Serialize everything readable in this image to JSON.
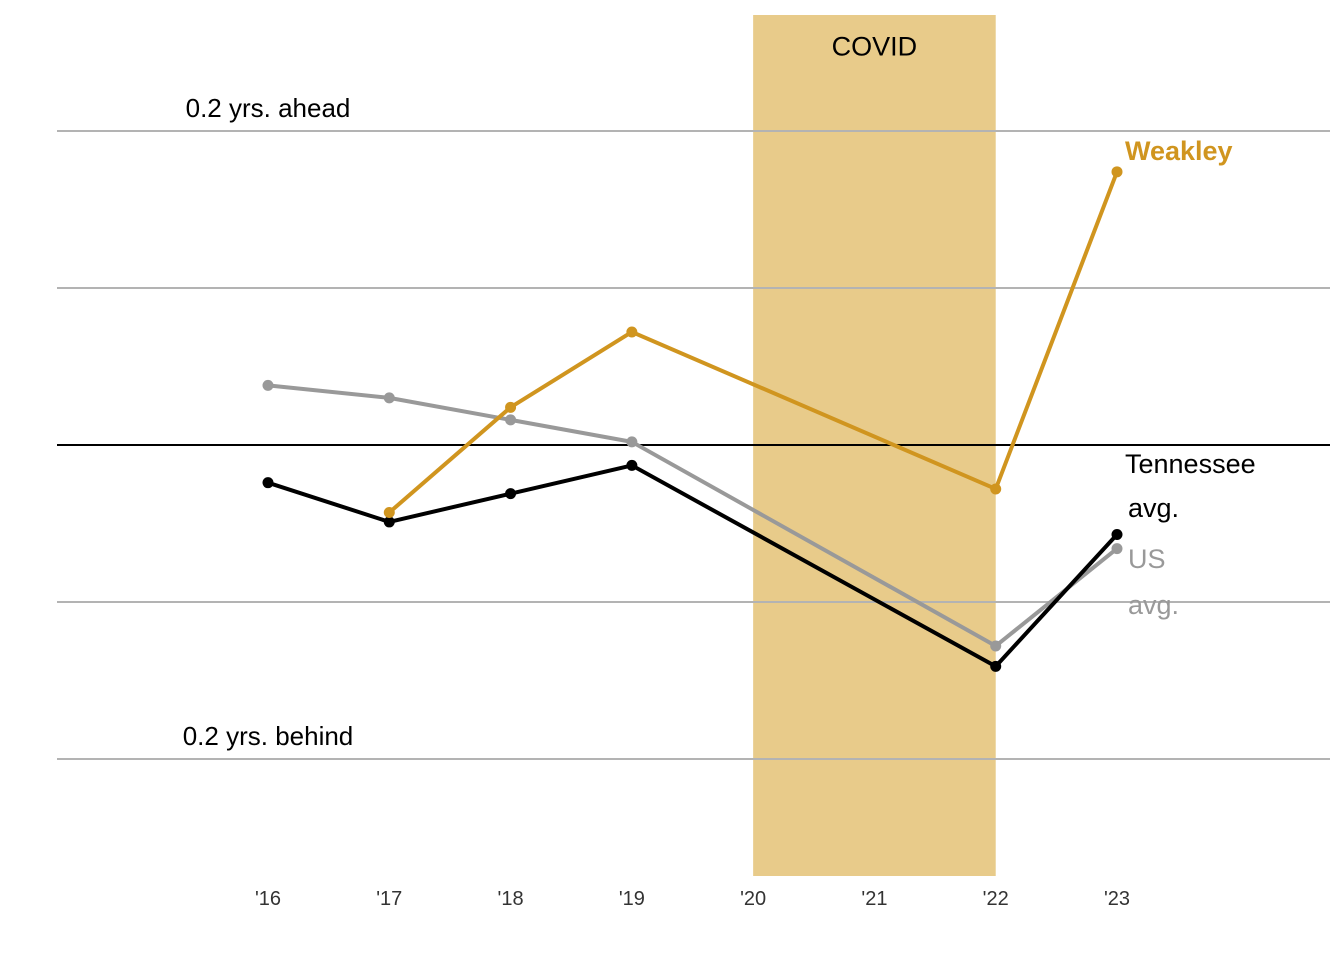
{
  "chart_data": {
    "type": "line",
    "title": "",
    "xlabel": "",
    "ylabel": "",
    "x": [
      2016,
      2017,
      2018,
      2019,
      2020,
      2021,
      2022,
      2023
    ],
    "x_tick_labels": [
      "'16",
      "'17",
      "'18",
      "'19",
      "'20",
      "'21",
      "'22",
      "'23"
    ],
    "ylim": [
      -0.27,
      0.27
    ],
    "gridlines": [
      -0.2,
      -0.1,
      0.1,
      0.2
    ],
    "reference_line": 0,
    "reference_labels": [
      {
        "y": 0.2,
        "text": "0.2 yrs. ahead"
      },
      {
        "y": -0.2,
        "text": "0.2 yrs. behind"
      }
    ],
    "shaded_region": {
      "x_start": 2020,
      "x_end": 2022,
      "label": "COVID",
      "color": "#e8cb8a"
    },
    "series": [
      {
        "name": "US avg.",
        "label_lines": [
          "US",
          "avg."
        ],
        "color": "#999999",
        "x": [
          2016,
          2017,
          2018,
          2019,
          2022,
          2023
        ],
        "values": [
          0.038,
          0.03,
          0.016,
          0.002,
          -0.128,
          -0.066
        ]
      },
      {
        "name": "Tennessee avg.",
        "label_lines": [
          "Tennessee",
          "avg."
        ],
        "color": "#000000",
        "x": [
          2016,
          2017,
          2018,
          2019,
          2022,
          2023
        ],
        "values": [
          -0.024,
          -0.049,
          -0.031,
          -0.013,
          -0.141,
          -0.057
        ]
      },
      {
        "name": "Weakley",
        "label_lines": [
          "Weakley"
        ],
        "color": "#d0951f",
        "x": [
          2017,
          2018,
          2019,
          2022,
          2023
        ],
        "values": [
          -0.043,
          0.024,
          0.072,
          -0.028,
          0.174
        ]
      }
    ]
  }
}
